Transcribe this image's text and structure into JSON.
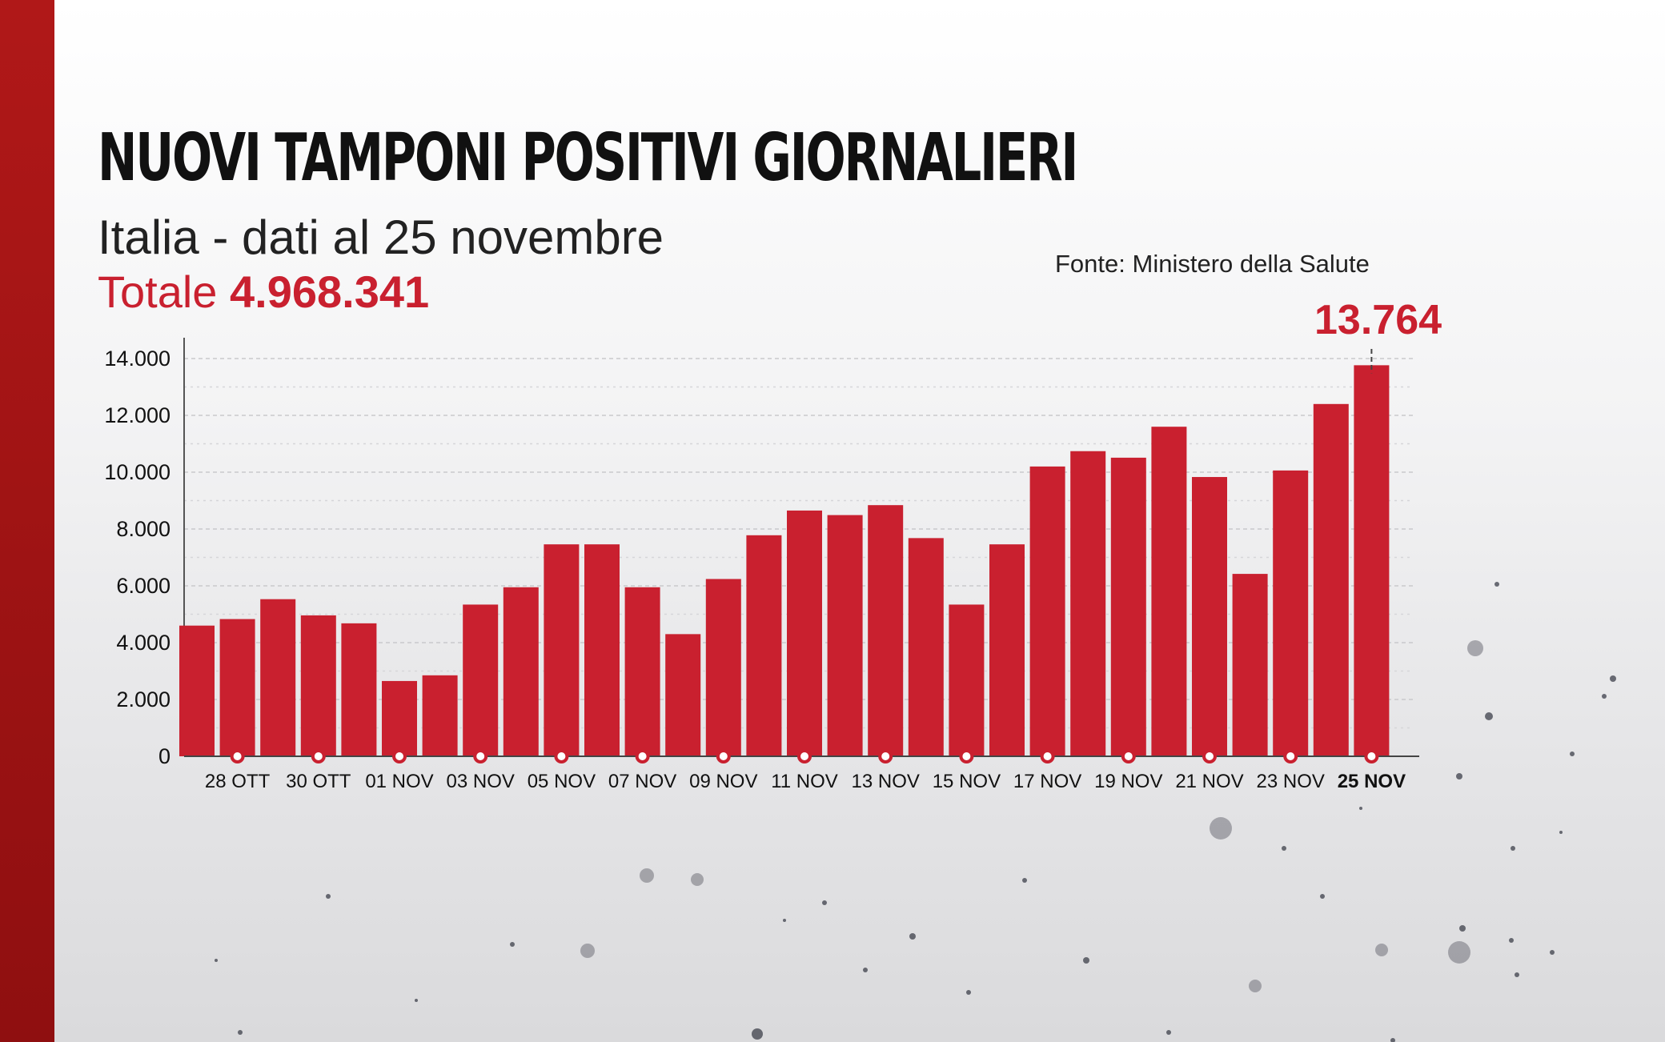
{
  "header": {
    "title": "NUOVI TAMPONI POSITIVI GIORNALIERI",
    "subtitle": "Italia - dati al 25 novembre",
    "total_label": "Totale",
    "total_value": "4.968.341",
    "source": "Fonte: Ministero della Salute"
  },
  "colors": {
    "bar": "#c9202f",
    "accent": "#c9202f",
    "side_bar": "#a01414"
  },
  "chart_data": {
    "type": "bar",
    "categories": [
      "27 OTT",
      "28 OTT",
      "29 OTT",
      "30 OTT",
      "31 OTT",
      "01 NOV",
      "02 NOV",
      "03 NOV",
      "04 NOV",
      "05 NOV",
      "06 NOV",
      "07 NOV",
      "08 NOV",
      "09 NOV",
      "10 NOV",
      "11 NOV",
      "12 NOV",
      "13 NOV",
      "14 NOV",
      "15 NOV",
      "16 NOV",
      "17 NOV",
      "18 NOV",
      "19 NOV",
      "20 NOV",
      "21 NOV",
      "22 NOV",
      "23 NOV",
      "24 NOV",
      "25 NOV"
    ],
    "values": [
      4600,
      4830,
      5530,
      4960,
      4680,
      2650,
      2850,
      5340,
      5950,
      7460,
      7460,
      5950,
      4300,
      6240,
      7780,
      8650,
      8490,
      8840,
      7680,
      5340,
      7460,
      10200,
      10740,
      10510,
      11600,
      9830,
      6420,
      10060,
      12400,
      13764
    ],
    "x_tick_labels": [
      "28 OTT",
      "30 OTT",
      "01 NOV",
      "03 NOV",
      "05 NOV",
      "07 NOV",
      "09 NOV",
      "11 NOV",
      "13 NOV",
      "15 NOV",
      "17 NOV",
      "19 NOV",
      "21 NOV",
      "23 NOV",
      "25 NOV"
    ],
    "y_ticks": [
      "0",
      "2.000",
      "4.000",
      "6.000",
      "8.000",
      "10.000",
      "12.000",
      "14.000"
    ],
    "ylim": [
      0,
      14000
    ],
    "grid": true,
    "highlight": {
      "category": "25 NOV",
      "label": "13.764"
    },
    "xlabel": "",
    "ylabel": ""
  }
}
